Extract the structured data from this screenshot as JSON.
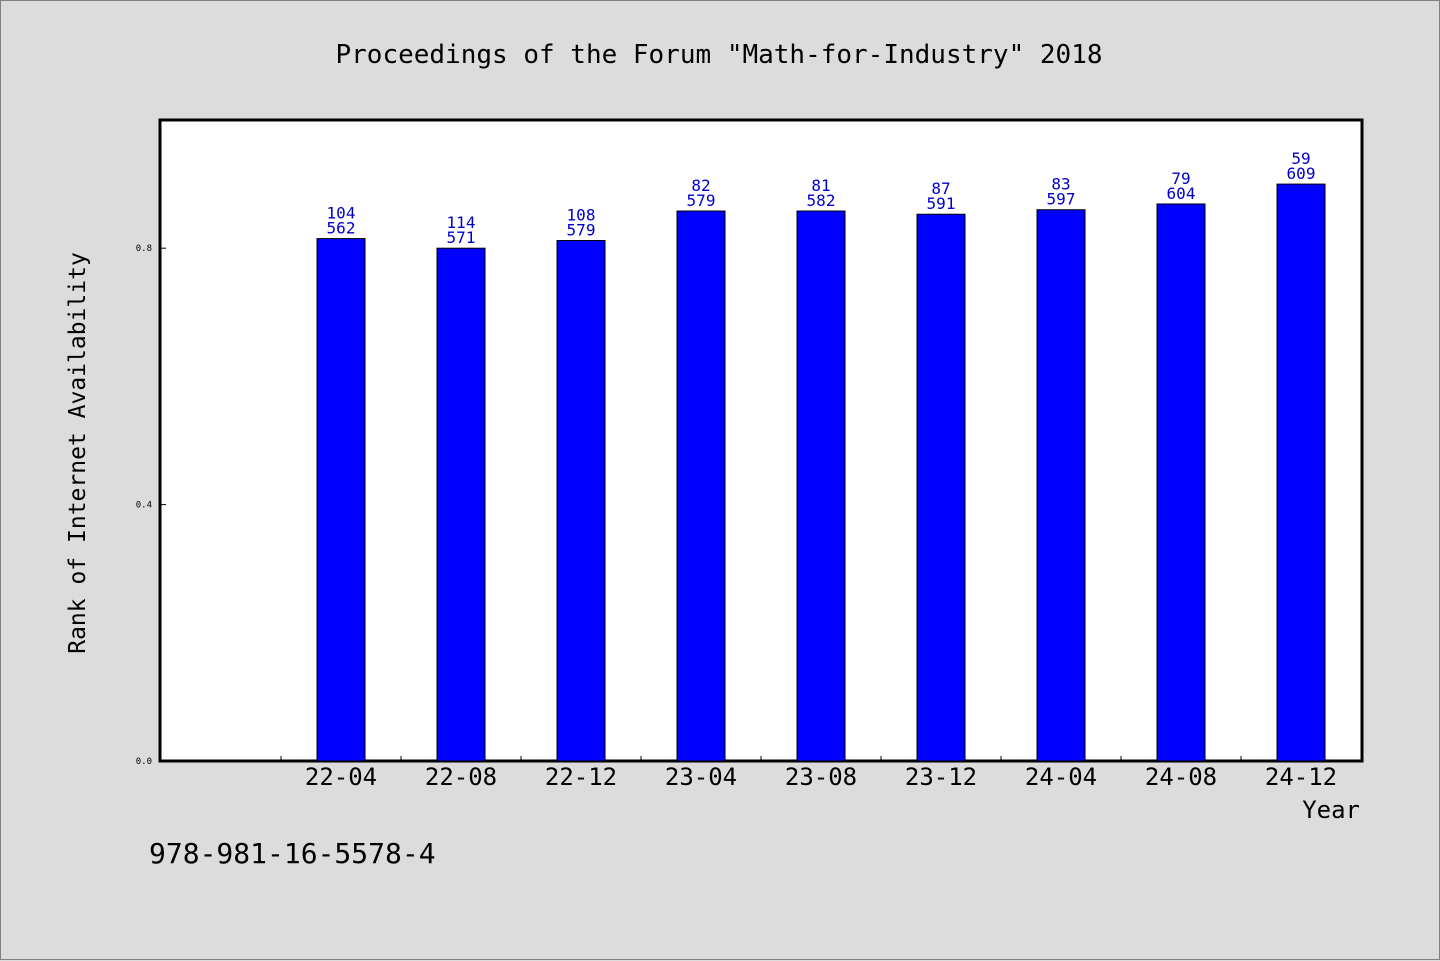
{
  "chart_data": {
    "type": "bar",
    "title": "Proceedings of the Forum \"Math-for-Industry\" 2018",
    "xlabel": "Year",
    "ylabel": "Rank of Internet Availability",
    "categories": [
      "22-04",
      "22-08",
      "22-12",
      "23-04",
      "23-08",
      "23-12",
      "24-04",
      "24-08",
      "24-12"
    ],
    "values": [
      0.815,
      0.8,
      0.812,
      0.858,
      0.858,
      0.853,
      0.86,
      0.869,
      0.9
    ],
    "labels_top": [
      "104",
      "114",
      "108",
      "82",
      "81",
      "87",
      "83",
      "79",
      "59"
    ],
    "labels_bottom": [
      "562",
      "571",
      "579",
      "579",
      "582",
      "591",
      "597",
      "604",
      "609"
    ],
    "ylim": [
      0,
      1.0
    ],
    "yticks": [
      0.0,
      0.4,
      0.8
    ],
    "ytick_labels": [
      "0.0",
      "0.4",
      "0.8"
    ],
    "grid": false,
    "colors": {
      "bar": "#0000ff",
      "bar_label": "#0000cc",
      "plot_bg": "#ffffff",
      "page_bg": "#dcdcdc"
    }
  },
  "footer_text": "978-981-16-5578-4"
}
